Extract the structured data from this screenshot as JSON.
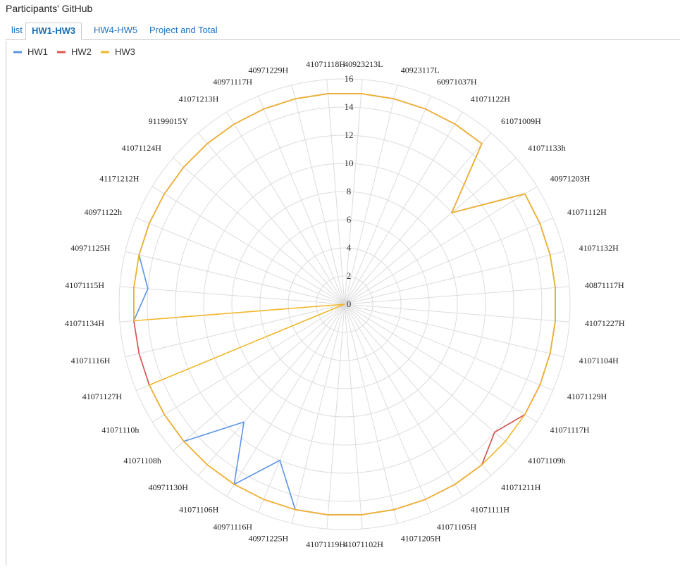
{
  "page": {
    "title": "Participants' GitHub"
  },
  "tabs": [
    {
      "label": "list",
      "active": false
    },
    {
      "label": "HW1-HW3",
      "active": true
    },
    {
      "label": "HW4-HW5",
      "active": false
    },
    {
      "label": "Project and Total",
      "active": false
    }
  ],
  "chart_data": {
    "type": "radar",
    "title": "",
    "rlim": [
      0,
      16
    ],
    "r_ticks": [
      0,
      2,
      4,
      6,
      8,
      10,
      12,
      14,
      16
    ],
    "grid": true,
    "legend_position": "top-left",
    "categories": [
      "40923213L",
      "40923117L",
      "60971037H",
      "41071122H",
      "61071009H",
      "41071133h",
      "40971203H",
      "41071112H",
      "41071132H",
      "40871117H",
      "41071227H",
      "41071104H",
      "41071129H",
      "41071117H",
      "41071109h",
      "41071211H",
      "41071111H",
      "41071105H",
      "41071205H",
      "41071102H",
      "41071119H",
      "40971225H",
      "40971116H",
      "41071106H",
      "40971130H",
      "41071108h",
      "41071110h",
      "41071127H",
      "41071116H",
      "41071134H",
      "41071115H",
      "40971125H",
      "40971122h",
      "41171212H",
      "41071124H",
      "91199015Y",
      "41071213H",
      "40971117H",
      "40971229H",
      "41071118H"
    ],
    "series": [
      {
        "name": "HW1",
        "color": "#5b95e8",
        "values": [
          15,
          15,
          15,
          15,
          15,
          10,
          15,
          15,
          15,
          15,
          15,
          15,
          15,
          15,
          14,
          15,
          15,
          15,
          15,
          15,
          15,
          15,
          12,
          15,
          11,
          15,
          15,
          15,
          15,
          15,
          14,
          15,
          15,
          15,
          15,
          15,
          15,
          15,
          15,
          15
        ]
      },
      {
        "name": "HW2",
        "color": "#e0574f",
        "values": [
          15,
          15,
          15,
          15,
          15,
          10,
          15,
          15,
          15,
          15,
          15,
          15,
          15,
          15,
          14,
          15,
          15,
          15,
          15,
          15,
          15,
          15,
          15,
          15,
          15,
          15,
          15,
          15,
          15,
          15,
          15,
          15,
          15,
          15,
          15,
          15,
          15,
          15,
          15,
          15
        ]
      },
      {
        "name": "HW3",
        "color": "#f2b62a",
        "values": [
          15,
          15,
          15,
          15,
          15,
          10,
          15,
          15,
          15,
          15,
          15,
          15,
          15,
          15,
          15,
          15,
          15,
          15,
          15,
          15,
          15,
          15,
          15,
          15,
          15,
          15,
          15,
          15,
          0,
          15,
          15,
          15,
          15,
          15,
          15,
          15,
          15,
          15,
          15,
          15
        ]
      }
    ]
  }
}
